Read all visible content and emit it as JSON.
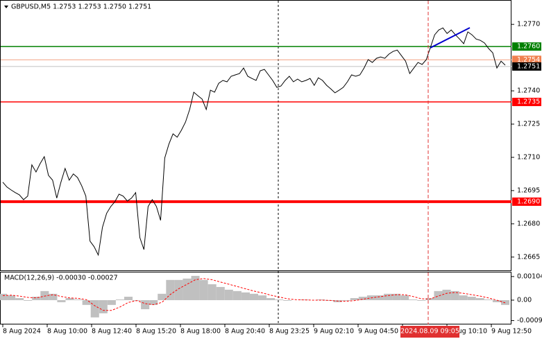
{
  "chart_data": [
    {
      "type": "line",
      "title": "GBPUSD,M5  1.2753 1.2753 1.2750 1.2751",
      "series": [
        {
          "color": "#000000",
          "values": [
            1.26988,
            1.26966,
            1.26953,
            1.26941,
            1.26931,
            1.26909,
            1.26925,
            1.27066,
            1.27034,
            1.27072,
            1.27103,
            1.27019,
            1.26997,
            1.26916,
            1.26988,
            1.2705,
            1.26997,
            1.27025,
            1.27009,
            1.26972,
            1.26925,
            1.26722,
            1.26697,
            1.26659,
            1.26784,
            1.26847,
            1.26878,
            1.269,
            1.26934,
            1.26925,
            1.26903,
            1.26916,
            1.26941,
            1.26738,
            1.26684,
            1.26878,
            1.26909,
            1.26878,
            1.26816,
            1.27097,
            1.27159,
            1.27206,
            1.27191,
            1.27222,
            1.27259,
            1.27316,
            1.27394,
            1.27378,
            1.27363,
            1.27316,
            1.27403,
            1.27394,
            1.27434,
            1.27447,
            1.27441,
            1.27466,
            1.27472,
            1.27478,
            1.27503,
            1.27466,
            1.27456,
            1.27447,
            1.27491,
            1.27497,
            1.27472,
            1.27447,
            1.27416,
            1.27422,
            1.27447,
            1.27466,
            1.27441,
            1.27453,
            1.27441,
            1.27447,
            1.27456,
            1.27425,
            1.27459,
            1.27447,
            1.27425,
            1.27409,
            1.27391,
            1.27403,
            1.27416,
            1.27441,
            1.27472,
            1.27466,
            1.27472,
            1.27503,
            1.27541,
            1.27528,
            1.27547,
            1.27553,
            1.27547,
            1.27566,
            1.27578,
            1.27584,
            1.27559,
            1.27534,
            1.27478,
            1.27503,
            1.27528,
            1.27519,
            1.27541,
            1.27597,
            1.27653,
            1.27675,
            1.27684,
            1.27659,
            1.27675,
            1.27653,
            1.27634,
            1.27613,
            1.27666,
            1.27653,
            1.27634,
            1.27628,
            1.27616,
            1.27591,
            1.27572,
            1.27503,
            1.27534,
            1.27516
          ]
        }
      ],
      "ylim": [
        1.2659,
        1.2781
      ],
      "yticks": [
        {
          "value": 1.277,
          "label": "1.2770"
        },
        {
          "value": 1.274,
          "label": "1.2740"
        },
        1.2725,
        {
          "value": 1.271,
          "label": "1.2710"
        },
        1.2695,
        {
          "value": 1.268,
          "label": "1.2680"
        },
        1.2665
      ],
      "levels": [
        {
          "value": 1.276,
          "label": "1.2760",
          "color": "#008000",
          "box": "#008000",
          "width": 1.5
        },
        {
          "value": 1.2754,
          "label": "1.2754",
          "color": "#f4a080",
          "box": "#f08050",
          "width": 1
        },
        {
          "value": 1.2751,
          "label": "1.2751",
          "color": "#c0c0c0",
          "box": "#000000",
          "width": 1
        },
        {
          "value": 1.2735,
          "label": "1.2735",
          "color": "#ff0000",
          "box": "#ff0000",
          "width": 1.5
        },
        {
          "value": 1.269,
          "label": "1.2690",
          "color": "#ff0000",
          "box": "#ff0000",
          "width": 4
        }
      ]
    },
    {
      "type": "macd",
      "title": "MACD(12,26,9) -0.00030 -0.00027",
      "series": [
        {
          "kind": "histogram",
          "color": "#c0c0c0",
          "values": [
            0.00028,
            0.00021,
            9e-05,
            -3e-05,
            0.00015,
            0.0004,
            0.00028,
            -9e-05,
            9e-05,
            3e-05,
            -0.00021,
            -0.00076,
            -0.00058,
            -0.00021,
            3e-05,
            0.00015,
            -3e-05,
            -0.0004,
            -0.00021,
            0.00028,
            0.00089,
            0.00089,
            0.00095,
            0.00107,
            0.00089,
            0.0007,
            0.00058,
            0.00046,
            0.0004,
            0.00034,
            0.00028,
            0.00021,
            9e-05,
            3e-05,
            -3e-05,
            0,
            3e-05,
            0,
            3e-05,
            -3e-05,
            -9e-05,
            -3e-05,
            9e-05,
            0.00015,
            0.00021,
            0.00021,
            0.00028,
            0.00028,
            0.00021,
            3e-05,
            -3e-05,
            9e-05,
            0.0004,
            0.00046,
            0.0004,
            0.00021,
            0.00015,
            9e-05,
            3e-05,
            -9e-05,
            -0.00021
          ]
        },
        {
          "kind": "signal",
          "color": "#ff0000",
          "values": [
            0.0002,
            0.00022,
            0.00018,
            0.00012,
            0.0001,
            0.00018,
            0.00024,
            0.00016,
            0.0001,
            8e-05,
            2e-05,
            -0.00025,
            -0.00045,
            -0.00045,
            -0.0003,
            -0.0001,
            -2e-05,
            -0.00015,
            -0.0002,
            -0.0001,
            0.00025,
            0.0005,
            0.0007,
            0.0009,
            0.00095,
            0.0009,
            0.0008,
            0.0007,
            0.0006,
            0.0005,
            0.0004,
            0.00032,
            0.00022,
            0.00014,
            6e-05,
            2e-05,
            1e-05,
            0,
            0,
            -1e-05,
            -4e-05,
            -5e-05,
            -2e-05,
            4e-05,
            0.0001,
            0.00015,
            0.0002,
            0.00024,
            0.00024,
            0.00016,
            6e-05,
            5e-05,
            0.00018,
            0.0003,
            0.00034,
            0.0003,
            0.00024,
            0.00018,
            0.0001,
            0,
            -0.00012
          ]
        }
      ],
      "ylim": [
        -0.00107,
        0.00122
      ],
      "yticks": [
        0.00104,
        {
          "value": 0,
          "label": "0.00"
        },
        -0.0009
      ],
      "x_labels": [
        "8 Aug 2024",
        "8 Aug 10:00",
        "8 Aug 12:40",
        "8 Aug 15:20",
        "8 Aug 18:00",
        "8 Aug 20:40",
        "8 Aug 23:25",
        "9 Aug 02:10",
        "9 Aug 04:50",
        null,
        "9 Aug 10:10",
        "9 Aug 12:50"
      ],
      "cursor_label": "2024.08.09 09:05"
    }
  ]
}
